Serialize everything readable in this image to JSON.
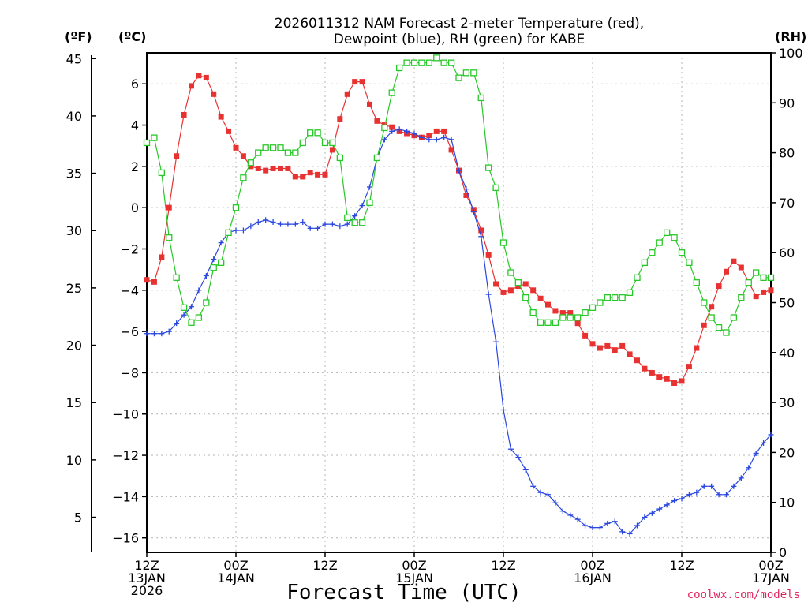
{
  "chart_data": {
    "type": "line",
    "title_line1": "2026011312 NAM Forecast 2-meter Temperature (red),",
    "title_line2": "Dewpoint (blue), RH (green) for KABE",
    "xlabel": "Forecast Time (UTC)",
    "credit": "coolwx.com/models",
    "unit_left_f": "(ºF)",
    "unit_left_c": "(ºC)",
    "unit_right": "(RH)",
    "x_range_hours": [
      0,
      84
    ],
    "ylim_c": [
      -16.7,
      7.5
    ],
    "ylim_rh": [
      0,
      100
    ],
    "grid": true,
    "colors": {
      "temperature": "#e83232",
      "dewpoint": "#2a48e0",
      "rh": "#28c828"
    },
    "x_ticks": [
      {
        "hour": 0,
        "lines": [
          "12Z",
          "13JAN",
          "2026"
        ]
      },
      {
        "hour": 12,
        "lines": [
          "00Z",
          "14JAN"
        ]
      },
      {
        "hour": 24,
        "lines": [
          "12Z"
        ]
      },
      {
        "hour": 36,
        "lines": [
          "00Z",
          "15JAN"
        ]
      },
      {
        "hour": 48,
        "lines": [
          "12Z"
        ]
      },
      {
        "hour": 60,
        "lines": [
          "00Z",
          "16JAN"
        ]
      },
      {
        "hour": 72,
        "lines": [
          "12Z"
        ]
      },
      {
        "hour": 84,
        "lines": [
          "00Z",
          "17JAN"
        ]
      }
    ],
    "c_ticks": [
      6,
      4,
      2,
      0,
      -2,
      -4,
      -6,
      -8,
      -10,
      -12,
      -14,
      -16
    ],
    "c_tick_labels": [
      "6",
      "4",
      "2",
      "0",
      "−2",
      "−4",
      "−6",
      "−8",
      "−10",
      "−12",
      "−14",
      "−16"
    ],
    "f_ticks": [
      45,
      40,
      35,
      30,
      25,
      20,
      15,
      10,
      5
    ],
    "f_tick_labels": [
      "45",
      "40",
      "35",
      "30",
      "25",
      "20",
      "15",
      "10",
      "5"
    ],
    "rh_ticks": [
      100,
      90,
      80,
      70,
      60,
      50,
      40,
      30,
      20,
      10,
      0
    ],
    "rh_tick_labels": [
      "100",
      "90",
      "80",
      "70",
      "60",
      "50",
      "40",
      "30",
      "20",
      "10",
      "0"
    ],
    "hours": [
      0,
      1,
      2,
      3,
      4,
      5,
      6,
      7,
      8,
      9,
      10,
      11,
      12,
      13,
      14,
      15,
      16,
      17,
      18,
      19,
      20,
      21,
      22,
      23,
      24,
      25,
      26,
      27,
      28,
      29,
      30,
      31,
      32,
      33,
      34,
      35,
      36,
      37,
      38,
      39,
      40,
      41,
      42,
      43,
      44,
      45,
      46,
      47,
      48,
      49,
      50,
      51,
      52,
      53,
      54,
      55,
      56,
      57,
      58,
      59,
      60,
      61,
      62,
      63,
      64,
      65,
      66,
      67,
      68,
      69,
      70,
      71,
      72,
      73,
      74,
      75,
      76,
      77,
      78,
      79,
      80,
      81,
      82,
      83,
      84
    ],
    "series": [
      {
        "name": "Temperature",
        "unit": "C",
        "values": [
          -3.5,
          -3.6,
          -2.4,
          0.0,
          2.5,
          4.5,
          5.9,
          6.4,
          6.3,
          5.5,
          4.4,
          3.7,
          2.9,
          2.5,
          2.0,
          1.9,
          1.8,
          1.9,
          1.9,
          1.9,
          1.5,
          1.5,
          1.7,
          1.6,
          1.6,
          2.8,
          4.3,
          5.5,
          6.1,
          6.1,
          5.0,
          4.2,
          4.0,
          3.9,
          3.7,
          3.6,
          3.5,
          3.4,
          3.5,
          3.7,
          3.7,
          2.8,
          1.8,
          0.6,
          -0.1,
          -1.1,
          -2.3,
          -3.7,
          -4.1,
          -4.0,
          -3.8,
          -3.7,
          -4.0,
          -4.4,
          -4.7,
          -5.0,
          -5.1,
          -5.1,
          -5.6,
          -6.2,
          -6.6,
          -6.8,
          -6.7,
          -6.9,
          -6.7,
          -7.1,
          -7.4,
          -7.8,
          -8.0,
          -8.2,
          -8.3,
          -8.5,
          -8.4,
          -7.7,
          -6.8,
          -5.7,
          -4.8,
          -3.8,
          -3.1,
          -2.6,
          -2.9,
          -3.6,
          -4.3,
          -4.1,
          -4.0
        ]
      },
      {
        "name": "Dewpoint",
        "unit": "C",
        "values": [
          -6.1,
          -6.1,
          -6.1,
          -6.0,
          -5.6,
          -5.2,
          -4.8,
          -4.0,
          -3.3,
          -2.5,
          -1.7,
          -1.2,
          -1.1,
          -1.1,
          -0.9,
          -0.7,
          -0.6,
          -0.7,
          -0.8,
          -0.8,
          -0.8,
          -0.7,
          -1.0,
          -1.0,
          -0.8,
          -0.8,
          -0.9,
          -0.8,
          -0.4,
          0.1,
          1.0,
          2.4,
          3.3,
          3.7,
          3.8,
          3.7,
          3.6,
          3.4,
          3.3,
          3.3,
          3.4,
          3.3,
          1.8,
          0.9,
          -0.2,
          -1.4,
          -4.2,
          -6.5,
          -9.8,
          -11.7,
          -12.1,
          -12.7,
          -13.5,
          -13.8,
          -13.9,
          -14.3,
          -14.7,
          -14.9,
          -15.1,
          -15.4,
          -15.5,
          -15.5,
          -15.3,
          -15.2,
          -15.7,
          -15.8,
          -15.4,
          -15.0,
          -14.8,
          -14.6,
          -14.4,
          -14.2,
          -14.1,
          -13.9,
          -13.8,
          -13.5,
          -13.5,
          -13.9,
          -13.9,
          -13.5,
          -13.1,
          -12.6,
          -11.9,
          -11.4,
          -11.0
        ]
      },
      {
        "name": "RH",
        "unit": "%",
        "values": [
          82,
          83,
          76,
          63,
          55,
          49,
          46,
          47,
          50,
          57,
          58,
          64,
          69,
          75,
          78,
          80,
          81,
          81,
          81,
          80,
          80,
          82,
          84,
          84,
          82,
          82,
          79,
          67,
          66,
          66,
          70,
          79,
          85,
          92,
          97,
          98,
          98,
          98,
          98,
          99,
          98,
          98,
          95,
          96,
          96,
          91,
          77,
          73,
          62,
          56,
          54,
          51,
          48,
          46,
          46,
          46,
          47,
          47,
          47,
          48,
          49,
          50,
          51,
          51,
          51,
          52,
          55,
          58,
          60,
          62,
          64,
          63,
          60,
          58,
          54,
          50,
          47,
          45,
          44,
          47,
          51,
          54,
          56,
          55,
          55
        ]
      }
    ]
  }
}
